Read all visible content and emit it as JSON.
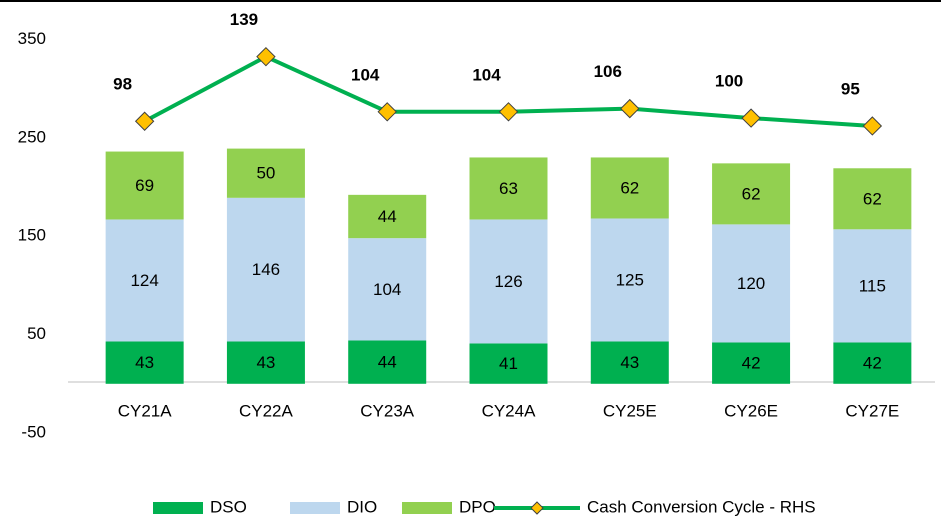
{
  "chart_data": {
    "type": "bar",
    "categories": [
      "CY21A",
      "CY22A",
      "CY23A",
      "CY24A",
      "CY25E",
      "CY26E",
      "CY27E"
    ],
    "series": [
      {
        "name": "DSO",
        "color": "#00b050",
        "values": [
          43,
          43,
          44,
          41,
          43,
          42,
          42
        ]
      },
      {
        "name": "DIO",
        "color": "#bdd7ee",
        "values": [
          124,
          146,
          104,
          126,
          125,
          120,
          115
        ]
      },
      {
        "name": "DPO",
        "color": "#92d050",
        "values": [
          69,
          50,
          44,
          63,
          62,
          62,
          62
        ]
      },
      {
        "name": "Cash Conversion Cycle - RHS",
        "type": "line",
        "axis": "y2",
        "color": "#00b050",
        "marker_color": "#ffc000",
        "values": [
          98,
          139,
          104,
          104,
          106,
          100,
          95
        ]
      }
    ],
    "ylim": [
      -50,
      390
    ],
    "yticks": [
      -50,
      50,
      150,
      250,
      350
    ],
    "y2lim": [
      -100,
      175
    ],
    "stacked": true,
    "grid": false,
    "legend": "bottom"
  }
}
